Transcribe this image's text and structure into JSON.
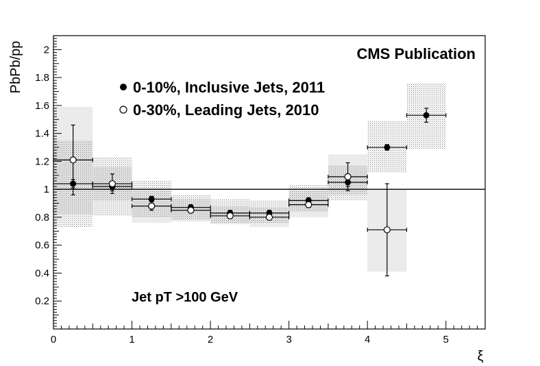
{
  "chart_data": {
    "type": "scatter",
    "title": "CMS Publication",
    "xlabel": "ξ",
    "ylabel": "PbPb/pp",
    "xlim": [
      0,
      5.5
    ],
    "ylim": [
      0,
      2.1
    ],
    "x_ticks": [
      "0",
      "1",
      "2",
      "3",
      "4",
      "5"
    ],
    "y_ticks": [
      "0.2",
      "0.4",
      "0.6",
      "0.8",
      "1",
      "1.2",
      "1.4",
      "1.6",
      "1.8",
      "2"
    ],
    "reference_line": 1,
    "annotation": "Jet pT >100 GeV",
    "series": [
      {
        "name": "0-10%, Inclusive Jets, 2011",
        "marker": "filled-circle",
        "points": [
          {
            "x": 0.25,
            "y": 1.04,
            "xerr": 0.25,
            "stat": 0.03,
            "sys_lo": 0.73,
            "sys_hi": 1.35
          },
          {
            "x": 0.75,
            "y": 1.02,
            "xerr": 0.25,
            "stat": 0.03,
            "sys_lo": 0.81,
            "sys_hi": 1.23
          },
          {
            "x": 1.25,
            "y": 0.93,
            "xerr": 0.25,
            "stat": 0.02,
            "sys_lo": 0.8,
            "sys_hi": 1.06
          },
          {
            "x": 1.75,
            "y": 0.87,
            "xerr": 0.25,
            "stat": 0.02,
            "sys_lo": 0.78,
            "sys_hi": 0.96
          },
          {
            "x": 2.25,
            "y": 0.83,
            "xerr": 0.25,
            "stat": 0.02,
            "sys_lo": 0.76,
            "sys_hi": 0.93
          },
          {
            "x": 2.75,
            "y": 0.83,
            "xerr": 0.25,
            "stat": 0.02,
            "sys_lo": 0.76,
            "sys_hi": 0.92
          },
          {
            "x": 3.25,
            "y": 0.92,
            "xerr": 0.25,
            "stat": 0.02,
            "sys_lo": 0.84,
            "sys_hi": 1.03
          },
          {
            "x": 3.75,
            "y": 1.05,
            "xerr": 0.25,
            "stat": 0.03,
            "sys_lo": 0.92,
            "sys_hi": 1.17
          },
          {
            "x": 4.25,
            "y": 1.3,
            "xerr": 0.25,
            "stat": 0.02,
            "sys_lo": 1.12,
            "sys_hi": 1.49
          },
          {
            "x": 4.75,
            "y": 1.53,
            "xerr": 0.25,
            "stat": 0.05,
            "sys_lo": 1.29,
            "sys_hi": 1.76
          }
        ]
      },
      {
        "name": "0-30%, Leading Jets, 2010",
        "marker": "open-circle",
        "points": [
          {
            "x": 0.25,
            "y": 1.21,
            "xerr": 0.25,
            "stat": 0.25,
            "sys_lo": 0.82,
            "sys_hi": 1.59
          },
          {
            "x": 0.75,
            "y": 1.04,
            "xerr": 0.25,
            "stat": 0.07,
            "sys_lo": 0.92,
            "sys_hi": 1.16
          },
          {
            "x": 1.25,
            "y": 0.88,
            "xerr": 0.25,
            "stat": 0.03,
            "sys_lo": 0.76,
            "sys_hi": 0.99
          },
          {
            "x": 1.75,
            "y": 0.85,
            "xerr": 0.25,
            "stat": 0.02,
            "sys_lo": 0.77,
            "sys_hi": 0.93
          },
          {
            "x": 2.25,
            "y": 0.81,
            "xerr": 0.25,
            "stat": 0.02,
            "sys_lo": 0.75,
            "sys_hi": 0.88
          },
          {
            "x": 2.75,
            "y": 0.8,
            "xerr": 0.25,
            "stat": 0.02,
            "sys_lo": 0.73,
            "sys_hi": 0.87
          },
          {
            "x": 3.25,
            "y": 0.89,
            "xerr": 0.25,
            "stat": 0.02,
            "sys_lo": 0.8,
            "sys_hi": 0.99
          },
          {
            "x": 3.75,
            "y": 1.09,
            "xerr": 0.25,
            "stat": 0.1,
            "sys_lo": 0.96,
            "sys_hi": 1.25
          },
          {
            "x": 4.25,
            "y": 0.71,
            "xerr": 0.25,
            "stat": 0.33,
            "sys_lo": 0.41,
            "sys_hi": 1.0
          }
        ]
      }
    ]
  }
}
